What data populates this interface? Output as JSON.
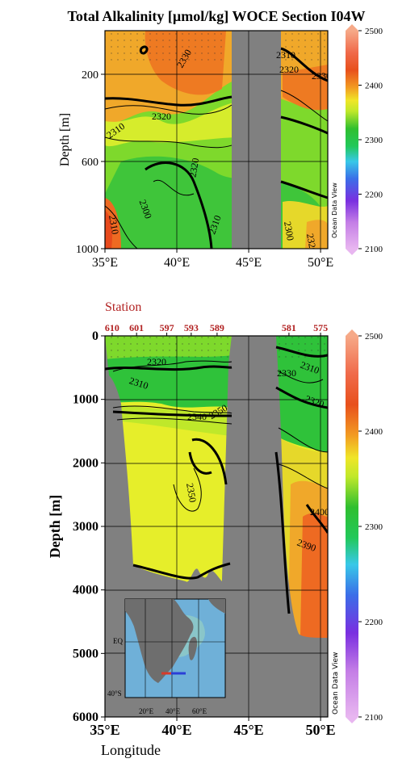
{
  "title": "Total Alkalinity [µmol/kg]  WOCE Section I04W",
  "colors": {
    "land": "#808080",
    "station_label": "#b22222",
    "contour": "#000000"
  },
  "watermark": "Ocean Data View",
  "chart_data": [
    {
      "type": "heatmap",
      "panel": "upper",
      "title": "Total Alkalinity [µmol/kg]  WOCE Section I04W",
      "xlabel": "",
      "ylabel": "Depth [m]",
      "xlim": [
        35,
        50.5
      ],
      "ylim": [
        1000,
        0
      ],
      "x_ticks": [
        35,
        40,
        45,
        50
      ],
      "x_tick_labels": [
        "35°E",
        "40°E",
        "45°E",
        "50°E"
      ],
      "y_ticks": [
        200,
        600,
        1000
      ],
      "y_tick_labels": [
        "200",
        "600",
        "1000"
      ],
      "grid": true,
      "contour_labels": [
        "2330",
        "2320",
        "2310",
        "2300",
        "2310",
        "2320",
        "2310",
        "2320",
        "2330",
        "2310",
        "2300",
        "2320"
      ],
      "colorbar": {
        "min": 2100,
        "max": 2500,
        "ticks": [
          2100,
          2200,
          2300,
          2400,
          2500
        ],
        "tick_labels": [
          "2100",
          "2200",
          "2300",
          "2400",
          "2500"
        ]
      }
    },
    {
      "type": "heatmap",
      "panel": "lower",
      "xlabel": "Longitude",
      "ylabel": "Depth [m]",
      "xlim": [
        35,
        50.5
      ],
      "ylim": [
        6000,
        0
      ],
      "x_ticks": [
        35,
        40,
        45,
        50
      ],
      "x_tick_labels": [
        "35°E",
        "40°E",
        "45°E",
        "50°E"
      ],
      "y_ticks": [
        0,
        1000,
        2000,
        3000,
        4000,
        5000,
        6000
      ],
      "y_tick_labels": [
        "0",
        "1000",
        "2000",
        "3000",
        "4000",
        "5000",
        "6000"
      ],
      "grid": true,
      "station_header": "Station",
      "stations": [
        {
          "label": "610",
          "lon": 35.5
        },
        {
          "label": "601",
          "lon": 37.2
        },
        {
          "label": "597",
          "lon": 39.3
        },
        {
          "label": "593",
          "lon": 41.0
        },
        {
          "label": "589",
          "lon": 42.8
        },
        {
          "label": "581",
          "lon": 47.8
        },
        {
          "label": "575",
          "lon": 50.0
        }
      ],
      "contour_labels": [
        "2320",
        "2310",
        "2340",
        "2350",
        "2350",
        "2310",
        "2320",
        "2330",
        "2390",
        "2400"
      ],
      "colorbar": {
        "min": 2100,
        "max": 2500,
        "ticks": [
          2100,
          2200,
          2300,
          2400,
          2500
        ],
        "tick_labels": [
          "2100",
          "2200",
          "2300",
          "2400",
          "2500"
        ]
      }
    }
  ],
  "inset_map": {
    "lat_labels": [
      "EQ",
      "40°S"
    ],
    "lon_labels": [
      "20°E",
      "40°E",
      "60°E"
    ]
  }
}
